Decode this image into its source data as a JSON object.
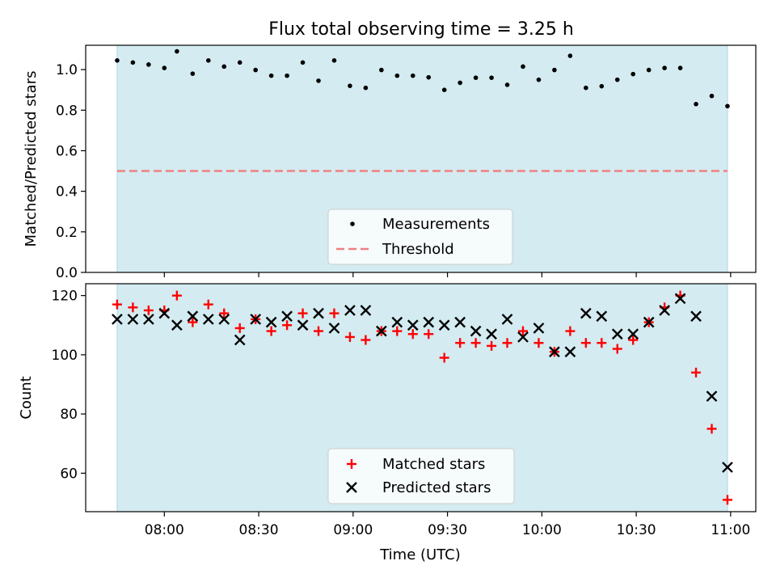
{
  "figure": {
    "title": "Flux total observing time = 3.25 h",
    "xlabel": "Time (UTC)",
    "x_ticks": [
      "08:00",
      "08:30",
      "09:00",
      "09:30",
      "10:00",
      "10:30",
      "11:00"
    ]
  },
  "chart_data": [
    {
      "type": "scatter",
      "panel": "top",
      "ylabel": "Matched/Predicted stars",
      "ylim": [
        0.0,
        1.12
      ],
      "yticks": [
        "0.0",
        "0.2",
        "0.4",
        "0.6",
        "0.8",
        "1.0"
      ],
      "xlim": [
        "07:35",
        "11:08"
      ],
      "shaded_span": [
        "07:45",
        "10:59"
      ],
      "shade_color": "#d3ebf1",
      "threshold": 0.5,
      "threshold_color": "#f08080",
      "x": [
        "07:45",
        "07:50",
        "07:55",
        "08:00",
        "08:04",
        "08:09",
        "08:14",
        "08:19",
        "08:24",
        "08:29",
        "08:34",
        "08:39",
        "08:44",
        "08:49",
        "08:54",
        "08:59",
        "09:04",
        "09:09",
        "09:14",
        "09:19",
        "09:24",
        "09:29",
        "09:34",
        "09:39",
        "09:44",
        "09:49",
        "09:54",
        "09:59",
        "10:04",
        "10:09",
        "10:14",
        "10:19",
        "10:24",
        "10:29",
        "10:34",
        "10:39",
        "10:44",
        "10:49",
        "10:54",
        "10:59"
      ],
      "series": [
        {
          "name": "Measurements",
          "color": "#000000",
          "marker": "dot",
          "values": [
            1.045,
            1.035,
            1.025,
            1.008,
            1.09,
            0.98,
            1.045,
            1.015,
            1.035,
            0.998,
            0.97,
            0.97,
            1.035,
            0.945,
            1.045,
            0.92,
            0.91,
            0.998,
            0.97,
            0.97,
            0.962,
            0.9,
            0.935,
            0.96,
            0.96,
            0.925,
            1.015,
            0.95,
            0.998,
            1.068,
            0.91,
            0.918,
            0.95,
            0.978,
            0.998,
            1.008,
            1.008,
            0.83,
            0.87,
            0.82
          ]
        }
      ],
      "threshold_label": "Threshold",
      "legend": "lower-center"
    },
    {
      "type": "scatter",
      "panel": "bottom",
      "ylabel": "Count",
      "ylim": [
        47,
        124
      ],
      "yticks": [
        "60",
        "80",
        "100",
        "120"
      ],
      "xlim": [
        "07:35",
        "11:08"
      ],
      "shaded_span": [
        "07:45",
        "10:59"
      ],
      "shade_color": "#d3ebf1",
      "x": [
        "07:45",
        "07:50",
        "07:55",
        "08:00",
        "08:04",
        "08:09",
        "08:14",
        "08:19",
        "08:24",
        "08:29",
        "08:34",
        "08:39",
        "08:44",
        "08:49",
        "08:54",
        "08:59",
        "09:04",
        "09:09",
        "09:14",
        "09:19",
        "09:24",
        "09:29",
        "09:34",
        "09:39",
        "09:44",
        "09:49",
        "09:54",
        "09:59",
        "10:04",
        "10:09",
        "10:14",
        "10:19",
        "10:24",
        "10:29",
        "10:34",
        "10:39",
        "10:44",
        "10:49",
        "10:54",
        "10:59"
      ],
      "series": [
        {
          "name": "Matched stars",
          "color": "#ff0000",
          "marker": "plus",
          "values": [
            117,
            116,
            115,
            115,
            120,
            111,
            117,
            114,
            109,
            112,
            108,
            110,
            114,
            108,
            114,
            106,
            105,
            108,
            108,
            107,
            107,
            99,
            104,
            104,
            103,
            104,
            108,
            104,
            101,
            108,
            104,
            104,
            102,
            105,
            111,
            116,
            120,
            94,
            75,
            51
          ]
        },
        {
          "name": "Predicted stars",
          "color": "#000000",
          "marker": "x",
          "values": [
            112,
            112,
            112,
            114,
            110,
            113,
            112,
            112,
            105,
            112,
            111,
            113,
            110,
            114,
            109,
            115,
            115,
            108,
            111,
            110,
            111,
            110,
            111,
            108,
            107,
            112,
            106,
            109,
            101,
            101,
            114,
            113,
            107,
            107,
            111,
            115,
            119,
            113,
            86,
            62
          ]
        }
      ],
      "legend": "lower-center"
    }
  ]
}
